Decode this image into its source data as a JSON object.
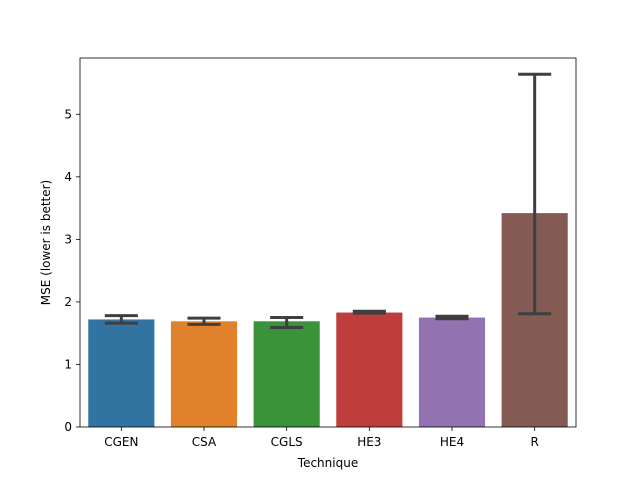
{
  "chart_data": {
    "type": "bar",
    "title": "",
    "xlabel": "Technique",
    "ylabel": "MSE (lower is better)",
    "categories": [
      "CGEN",
      "CSA",
      "CGLS",
      "HE3",
      "HE4",
      "R"
    ],
    "values": [
      1.72,
      1.69,
      1.69,
      1.83,
      1.75,
      3.42
    ],
    "error_bars": [
      {
        "low": 1.66,
        "high": 1.78
      },
      {
        "low": 1.64,
        "high": 1.74
      },
      {
        "low": 1.59,
        "high": 1.75
      },
      {
        "low": 1.82,
        "high": 1.85
      },
      {
        "low": 1.73,
        "high": 1.77
      },
      {
        "low": 1.81,
        "high": 5.64
      }
    ],
    "colors": [
      "#3274a1",
      "#e1812c",
      "#3a923a",
      "#c03d3e",
      "#9372b2",
      "#845b53"
    ],
    "error_color": "#3f3f3f",
    "ylim": [
      0,
      5.9
    ],
    "yticks": [
      0,
      1,
      2,
      3,
      4,
      5
    ],
    "grid": false
  }
}
